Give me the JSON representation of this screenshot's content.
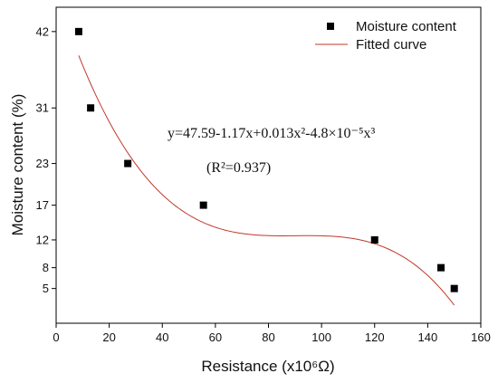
{
  "chart_data": {
    "type": "scatter",
    "xlabel": "Resistance (x10⁶Ω)",
    "ylabel": "Moisture content (%)",
    "xlim": [
      0,
      160
    ],
    "ylim": [
      0,
      45.5
    ],
    "x_ticks": [
      0,
      20,
      40,
      60,
      80,
      100,
      120,
      140,
      160
    ],
    "y_ticks": [
      5,
      8,
      12,
      17,
      23,
      31,
      42
    ],
    "grid": false,
    "legend_position": "top-right",
    "series": [
      {
        "name": "Moisture content",
        "kind": "scatter",
        "marker": "square",
        "color": "#000000",
        "points": [
          [
            8.5,
            42
          ],
          [
            13,
            31
          ],
          [
            27,
            23
          ],
          [
            55.5,
            17
          ],
          [
            120,
            12
          ],
          [
            145,
            8
          ],
          [
            150,
            5
          ]
        ]
      },
      {
        "name": "Fitted curve",
        "kind": "line",
        "color": "#c0392b",
        "x_range": [
          8.5,
          150
        ],
        "coefficients": [
          47.59,
          -1.17,
          0.013,
          -4.8e-05
        ]
      }
    ],
    "annotations": {
      "equation": "y=47.59-1.17x+0.013x²-4.8×10⁻⁵x³",
      "r_squared": "(R²=0.937)"
    }
  }
}
